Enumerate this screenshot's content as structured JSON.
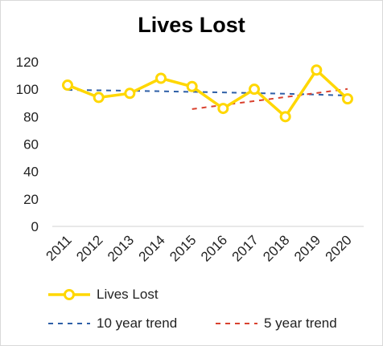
{
  "chart_data": {
    "type": "line",
    "title": "Lives Lost",
    "categories": [
      "2011",
      "2012",
      "2013",
      "2014",
      "2015",
      "2016",
      "2017",
      "2018",
      "2019",
      "2020"
    ],
    "ylim": [
      0,
      120
    ],
    "yticks": [
      0,
      20,
      40,
      60,
      80,
      100,
      120
    ],
    "grid": false,
    "legend_position": "bottom",
    "series": [
      {
        "name": "Lives Lost",
        "values": [
          103,
          94,
          97,
          108,
          102,
          86,
          100,
          80,
          114,
          93
        ],
        "color": "#FFD700",
        "style": "solid-markers"
      },
      {
        "name": "10 year trend",
        "values": [
          99.5,
          99.2,
          98.9,
          98.5,
          98.1,
          97.7,
          97.2,
          96.7,
          96.1,
          95.4
        ],
        "color": "#2E5FA7",
        "style": "dashed"
      },
      {
        "name": "5 year trend",
        "values": [
          null,
          null,
          null,
          null,
          85.5,
          88.5,
          91.4,
          94.3,
          97.2,
          100.2
        ],
        "color": "#D9412E",
        "style": "dashed"
      }
    ]
  }
}
